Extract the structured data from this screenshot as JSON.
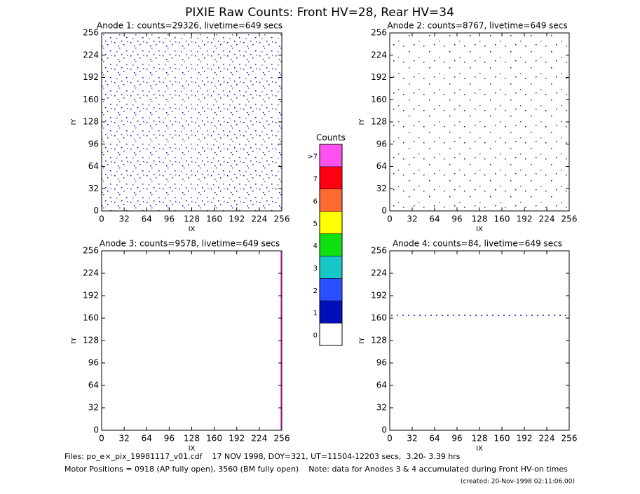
{
  "title": "PIXIE Raw Counts:  Front HV=28, Rear HV=34",
  "chart_data": [
    {
      "type": "heatmap",
      "title": "Anode 1: counts=29326, livetime=649 secs",
      "xlabel": "IX",
      "ylabel": "IY",
      "xlim": [
        0,
        256
      ],
      "ylim": [
        0,
        256
      ],
      "xticks": [
        0,
        32,
        64,
        96,
        128,
        160,
        192,
        224,
        256
      ],
      "yticks": [
        0,
        32,
        64,
        96,
        128,
        160,
        192,
        224,
        256
      ]
    },
    {
      "type": "heatmap",
      "title": "Anode 2: counts=8767, livetime=649 secs",
      "xlabel": "IX",
      "ylabel": "IY",
      "xlim": [
        0,
        256
      ],
      "ylim": [
        0,
        256
      ],
      "xticks": [
        0,
        32,
        64,
        96,
        128,
        160,
        192,
        224,
        256
      ],
      "yticks": [
        0,
        32,
        64,
        96,
        128,
        160,
        192,
        224,
        256
      ]
    },
    {
      "type": "heatmap",
      "title": "Anode 3: counts=9578, livetime=649 secs",
      "xlabel": "IX",
      "ylabel": "IY",
      "xlim": [
        0,
        256
      ],
      "ylim": [
        0,
        256
      ],
      "xticks": [
        0,
        32,
        64,
        96,
        128,
        160,
        192,
        224,
        256
      ],
      "yticks": [
        0,
        32,
        64,
        96,
        128,
        160,
        192,
        224,
        256
      ]
    },
    {
      "type": "heatmap",
      "title": "Anode 4: counts=84, livetime=649 secs",
      "xlabel": "IX",
      "ylabel": "IY",
      "xlim": [
        0,
        256
      ],
      "ylim": [
        0,
        256
      ],
      "xticks": [
        0,
        32,
        64,
        96,
        128,
        160,
        192,
        224,
        256
      ],
      "yticks": [
        0,
        32,
        64,
        96,
        128,
        160,
        192,
        224,
        256
      ]
    }
  ],
  "colorbar": {
    "title": "Counts",
    "labels": [
      "0",
      "1",
      "2",
      "3",
      "4",
      "5",
      "6",
      "7",
      ">7"
    ],
    "colors": [
      "#ffffff",
      "#0010b8",
      "#2850ff",
      "#18c8c8",
      "#10e010",
      "#ffff00",
      "#ff6a30",
      "#ff0010",
      "#ff50f0"
    ]
  },
  "footer": [
    "Files: po_e×_pix_19981117_v01.cdf    17 NOV 1998, DOY=321, UT=11504-12203 secs,  3.20- 3.39 hrs",
    "Motor Positions = 0918 (AP fully open), 3560 (BM fully open)    Note: data for Anodes 3 & 4 accumulated during Front HV-on times",
    "(created: 20-Nov-1998 02:11:06.00)"
  ]
}
